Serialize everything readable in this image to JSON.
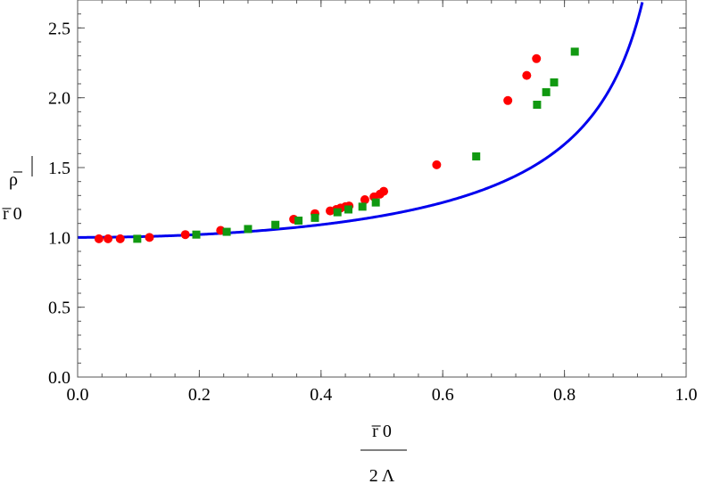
{
  "chart_data": {
    "type": "scatter",
    "xlabel": {
      "numerator": "r̅ 0",
      "denominator": "2 Λ"
    },
    "ylabel": {
      "numerator": "ρ̅",
      "denominator": "r̅ 0"
    },
    "xlim": [
      0.0,
      1.0
    ],
    "ylim": [
      0.0,
      2.7
    ],
    "x_ticks": [
      "0.0",
      "0.2",
      "0.4",
      "0.6",
      "0.8",
      "1.0"
    ],
    "y_ticks": [
      "0.0",
      "0.5",
      "1.0",
      "1.5",
      "2.0",
      "2.5"
    ],
    "grid": false,
    "colors": {
      "curve": "#0000ee",
      "red": "#ff0000",
      "green": "#119911"
    },
    "curve": {
      "description": "smooth theory curve, 1/sqrt(1-x^2)",
      "x": [
        0.0,
        0.05,
        0.1,
        0.15,
        0.2,
        0.25,
        0.3,
        0.35,
        0.4,
        0.45,
        0.5,
        0.55,
        0.6,
        0.65,
        0.7,
        0.72,
        0.74,
        0.76,
        0.78,
        0.8,
        0.81,
        0.82,
        0.83
      ],
      "y": [
        1.0,
        1.001,
        1.005,
        1.011,
        1.021,
        1.033,
        1.048,
        1.068,
        1.091,
        1.12,
        1.155,
        1.197,
        1.25,
        1.316,
        1.4,
        1.441,
        1.487,
        1.538,
        1.598,
        1.667,
        1.705,
        1.747,
        1.793
      ]
    },
    "series": [
      {
        "marker": "circle",
        "color": "#ff0000",
        "points": [
          [
            0.035,
            0.99
          ],
          [
            0.05,
            0.99
          ],
          [
            0.07,
            0.99
          ],
          [
            0.118,
            1.0
          ],
          [
            0.177,
            1.02
          ],
          [
            0.235,
            1.05
          ],
          [
            0.355,
            1.13
          ],
          [
            0.39,
            1.17
          ],
          [
            0.415,
            1.19
          ],
          [
            0.425,
            1.2
          ],
          [
            0.432,
            1.21
          ],
          [
            0.44,
            1.22
          ],
          [
            0.446,
            1.225
          ],
          [
            0.472,
            1.27
          ],
          [
            0.487,
            1.29
          ],
          [
            0.497,
            1.31
          ],
          [
            0.503,
            1.33
          ],
          [
            0.59,
            1.52
          ],
          [
            0.707,
            1.98
          ],
          [
            0.738,
            2.16
          ],
          [
            0.754,
            2.28
          ]
        ]
      },
      {
        "marker": "square",
        "color": "#119911",
        "points": [
          [
            0.098,
            0.99
          ],
          [
            0.195,
            1.02
          ],
          [
            0.245,
            1.04
          ],
          [
            0.28,
            1.06
          ],
          [
            0.325,
            1.09
          ],
          [
            0.363,
            1.12
          ],
          [
            0.39,
            1.14
          ],
          [
            0.427,
            1.18
          ],
          [
            0.445,
            1.2
          ],
          [
            0.468,
            1.22
          ],
          [
            0.49,
            1.25
          ],
          [
            0.655,
            1.58
          ],
          [
            0.755,
            1.95
          ],
          [
            0.77,
            2.04
          ],
          [
            0.783,
            2.11
          ],
          [
            0.817,
            2.33
          ]
        ]
      }
    ]
  }
}
